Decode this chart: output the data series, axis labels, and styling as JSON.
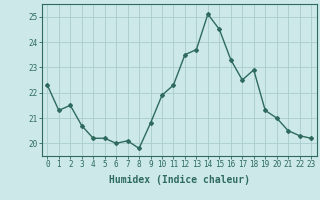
{
  "x": [
    0,
    1,
    2,
    3,
    4,
    5,
    6,
    7,
    8,
    9,
    10,
    11,
    12,
    13,
    14,
    15,
    16,
    17,
    18,
    19,
    20,
    21,
    22,
    23
  ],
  "y": [
    22.3,
    21.3,
    21.5,
    20.7,
    20.2,
    20.2,
    20.0,
    20.1,
    19.8,
    20.8,
    21.9,
    22.3,
    23.5,
    23.7,
    25.1,
    24.5,
    23.3,
    22.5,
    22.9,
    21.3,
    21.0,
    20.5,
    20.3,
    20.2
  ],
  "line_color": "#2e6b5e",
  "marker": "D",
  "marker_size": 2,
  "bg_color": "#cce8e8",
  "grid_color": "#aacccc",
  "xlabel": "Humidex (Indice chaleur)",
  "xlim": [
    -0.5,
    23.5
  ],
  "ylim": [
    19.5,
    25.5
  ],
  "yticks": [
    20,
    21,
    22,
    23,
    24,
    25
  ],
  "xticks": [
    0,
    1,
    2,
    3,
    4,
    5,
    6,
    7,
    8,
    9,
    10,
    11,
    12,
    13,
    14,
    15,
    16,
    17,
    18,
    19,
    20,
    21,
    22,
    23
  ],
  "tick_fontsize": 5.5,
  "xlabel_fontsize": 7,
  "axis_color": "#2e6b5e",
  "spine_color": "#2e6b5e",
  "linewidth": 1.0
}
